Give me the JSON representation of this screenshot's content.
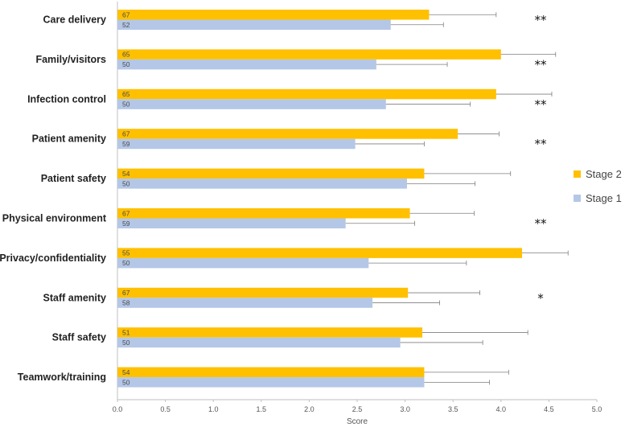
{
  "chart_data": {
    "type": "bar",
    "orientation": "horizontal",
    "xlabel": "Score",
    "xlim": [
      0,
      5
    ],
    "xticks": [
      "0.0",
      "0.5",
      "1.0",
      "1.5",
      "2.0",
      "2.5",
      "3.0",
      "3.5",
      "4.0",
      "4.5",
      "5.0"
    ],
    "legend_position": "right",
    "grid": false,
    "categories": [
      "Care delivery",
      "Family/visitors",
      "Infection control",
      "Patient amenity",
      "Patient safety",
      "Physical environment",
      "Privacy/confidentiality",
      "Staff amenity",
      "Staff safety",
      "Teamwork/training"
    ],
    "series": [
      {
        "name": "Stage 2",
        "color": "#FFC000",
        "values": [
          3.25,
          4.0,
          3.95,
          3.55,
          3.2,
          3.05,
          4.22,
          3.03,
          3.18,
          3.2
        ],
        "error": [
          0.7,
          0.57,
          0.58,
          0.43,
          0.9,
          0.67,
          0.48,
          0.75,
          1.1,
          0.88
        ],
        "n": [
          "67",
          "65",
          "65",
          "67",
          "54",
          "67",
          "55",
          "67",
          "51",
          "54"
        ]
      },
      {
        "name": "Stage 1",
        "color": "#B4C7E7",
        "values": [
          2.85,
          2.7,
          2.8,
          2.48,
          3.02,
          2.38,
          2.62,
          2.66,
          2.95,
          3.2
        ],
        "error": [
          0.55,
          0.74,
          0.88,
          0.72,
          0.71,
          0.72,
          1.02,
          0.7,
          0.86,
          0.68
        ],
        "n": [
          "52",
          "50",
          "50",
          "59",
          "50",
          "59",
          "50",
          "58",
          "50",
          "50"
        ]
      }
    ],
    "significance": [
      "**",
      "**",
      "**",
      "**",
      "",
      "**",
      "",
      "*",
      "",
      ""
    ]
  }
}
